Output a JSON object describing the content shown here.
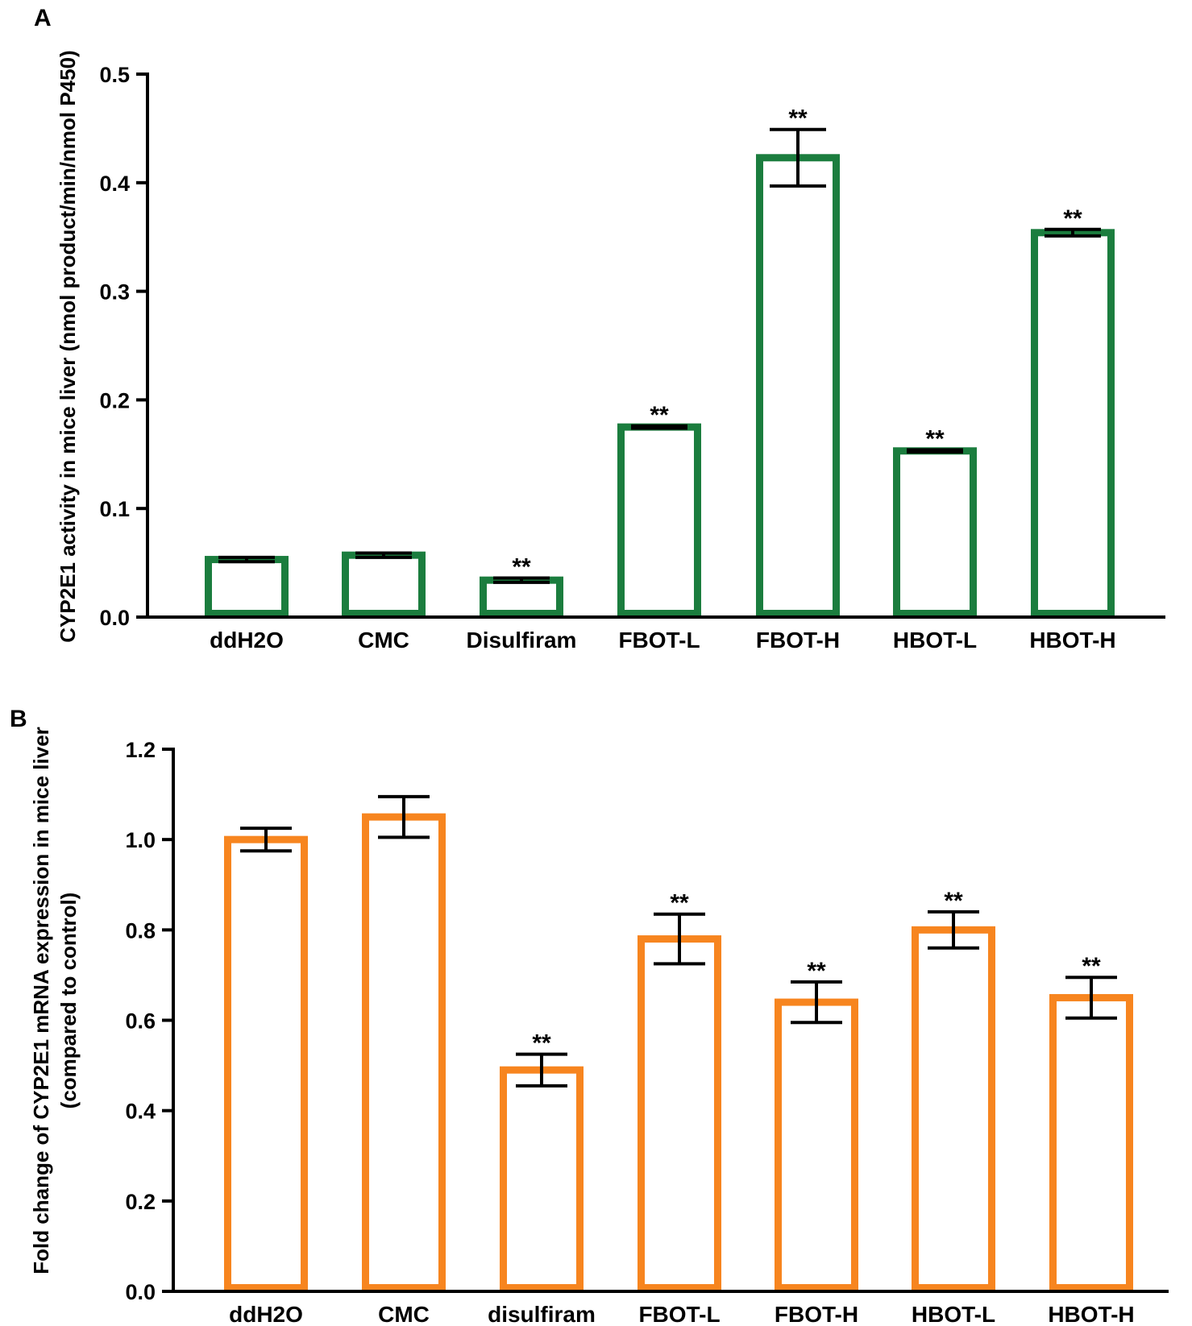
{
  "chart_data": [
    {
      "panel": "A",
      "type": "bar",
      "ylabel": "CYP2E1 activity in mice liver (nmol product/min/nmol P450)",
      "xlabel": "",
      "ylim": [
        0,
        0.5
      ],
      "yticks": [
        "0.0",
        "0.1",
        "0.2",
        "0.3",
        "0.4",
        "0.5"
      ],
      "categories": [
        "ddH2O",
        "CMC",
        "Disulfiram",
        "FBOT-L",
        "FBOT-H",
        "HBOT-L",
        "HBOT-H"
      ],
      "values": [
        0.053,
        0.057,
        0.034,
        0.175,
        0.423,
        0.153,
        0.354
      ],
      "errors": [
        0.002,
        0.002,
        0.002,
        0.001,
        0.026,
        0.001,
        0.003
      ],
      "significance": [
        "",
        "",
        "**",
        "**",
        "**",
        "**",
        "**"
      ],
      "color": "#1b7d3e"
    },
    {
      "panel": "B",
      "type": "bar",
      "ylabel": [
        "Fold change of CYP2E1 mRNA expression in mice liver",
        "(compared to control)"
      ],
      "xlabel": "",
      "ylim": [
        0,
        1.2
      ],
      "yticks": [
        "0.0",
        "0.2",
        "0.4",
        "0.6",
        "0.8",
        "1.0",
        "1.2"
      ],
      "categories": [
        "ddH2O",
        "CMC",
        "disulfiram",
        "FBOT-L",
        "FBOT-H",
        "HBOT-L",
        "HBOT-H"
      ],
      "values": [
        1.0,
        1.05,
        0.49,
        0.78,
        0.64,
        0.8,
        0.65
      ],
      "errors": [
        0.025,
        0.045,
        0.035,
        0.055,
        0.045,
        0.04,
        0.045
      ],
      "significance": [
        "",
        "",
        "**",
        "**",
        "**",
        "**",
        "**"
      ],
      "color": "#f7851f"
    }
  ]
}
